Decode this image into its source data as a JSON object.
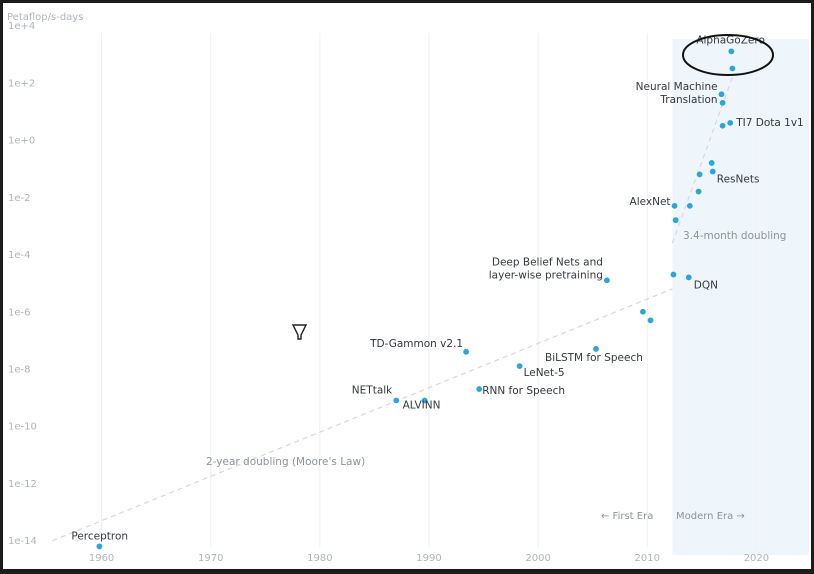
{
  "chart_data": {
    "type": "scatter",
    "title": "",
    "ylabel": "Petaflop/s-days",
    "xlabel": "",
    "y_scale": "log10",
    "xlim": [
      1955,
      2025
    ],
    "ylim_exponent": [
      -14.5,
      4.3
    ],
    "x_ticks": [
      "1960",
      "1970",
      "1980",
      "1990",
      "2000",
      "2010",
      "2020"
    ],
    "x_tick_values": [
      1960,
      1970,
      1980,
      1990,
      2000,
      2010,
      2020
    ],
    "y_ticks": [
      "1e+4",
      "1e+2",
      "1e+0",
      "1e-2",
      "1e-4",
      "1e-6",
      "1e-8",
      "1e-10",
      "1e-12",
      "1e-14"
    ],
    "y_tick_exponents": [
      4,
      2,
      0,
      -2,
      -4,
      -6,
      -8,
      -10,
      -12,
      -14
    ],
    "grid": {
      "vertical": true,
      "horizontal": false
    },
    "point_color": "#2aa6dc",
    "trend_color": "#d5d8dc",
    "modern_era_shade": "#eff6fb",
    "modern_era_start": 2012.3,
    "points": [
      {
        "x": 1959.8,
        "y": -14.2,
        "label": "Perceptron"
      },
      {
        "x": 1987.0,
        "y": -9.1,
        "label": "NETtalk"
      },
      {
        "x": 1989.6,
        "y": -9.1,
        "label": "ALVINN"
      },
      {
        "x": 1993.4,
        "y": -7.4,
        "label": "TD-Gammon v2.1"
      },
      {
        "x": 1994.6,
        "y": -8.7,
        "label": "RNN for Speech"
      },
      {
        "x": 1998.3,
        "y": -7.9,
        "label": "LeNet-5"
      },
      {
        "x": 2005.3,
        "y": -7.3,
        "label": "BiLSTM for Speech"
      },
      {
        "x": 2006.3,
        "y": -4.9,
        "label": "Deep Belief Nets and layer-wise pretraining"
      },
      {
        "x": 2009.6,
        "y": -6.0,
        "label": ""
      },
      {
        "x": 2010.3,
        "y": -6.3,
        "label": ""
      },
      {
        "x": 2012.4,
        "y": -4.7,
        "label": ""
      },
      {
        "x": 2012.5,
        "y": -2.3,
        "label": "AlexNet"
      },
      {
        "x": 2012.6,
        "y": -2.8,
        "label": ""
      },
      {
        "x": 2013.8,
        "y": -4.8,
        "label": "DQN"
      },
      {
        "x": 2013.9,
        "y": -2.3,
        "label": ""
      },
      {
        "x": 2014.7,
        "y": -1.8,
        "label": ""
      },
      {
        "x": 2014.8,
        "y": -1.2,
        "label": ""
      },
      {
        "x": 2015.9,
        "y": -0.8,
        "label": ""
      },
      {
        "x": 2016.0,
        "y": -1.1,
        "label": "ResNets"
      },
      {
        "x": 2016.8,
        "y": 1.6,
        "label": ""
      },
      {
        "x": 2016.9,
        "y": 1.3,
        "label": "Neural Machine Translation"
      },
      {
        "x": 2016.9,
        "y": 0.5,
        "label": ""
      },
      {
        "x": 2017.6,
        "y": 0.6,
        "label": "TI7 Dota 1v1"
      },
      {
        "x": 2017.8,
        "y": 2.5,
        "label": ""
      },
      {
        "x": 2017.7,
        "y": 3.1,
        "label": "AlphaGoZero"
      }
    ],
    "trend_lines": [
      {
        "label": "2-year doubling (Moore's Law)",
        "from": [
          1955.5,
          -14.0
        ],
        "to": [
          2012.3,
          -5.2
        ]
      },
      {
        "label": "3.4-month doubling",
        "from": [
          2012.3,
          -3.6
        ],
        "to": [
          2017.9,
          2.3
        ]
      }
    ],
    "annotations": {
      "first_era": "← First Era",
      "modern_era": "Modern Era →"
    },
    "highlight_label": "AlphaGoZero"
  }
}
